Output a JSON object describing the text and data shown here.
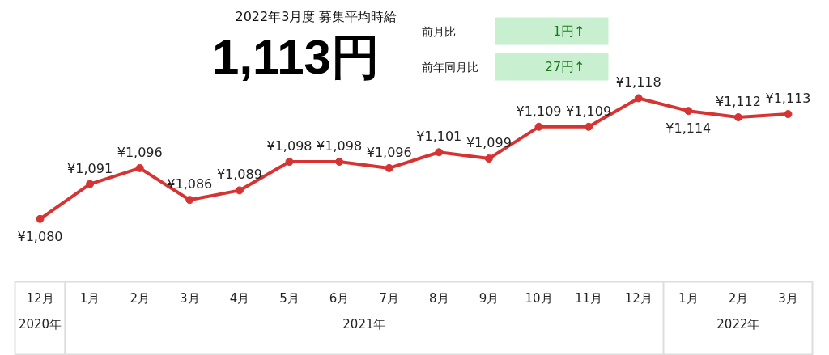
{
  "chart_data": {
    "type": "line",
    "title": "2022年3月度 募集平均時給",
    "categories": [
      "12月",
      "1月",
      "2月",
      "3月",
      "4月",
      "5月",
      "6月",
      "7月",
      "8月",
      "9月",
      "10月",
      "11月",
      "12月",
      "1月",
      "2月",
      "3月"
    ],
    "values": [
      1080,
      1091,
      1096,
      1086,
      1089,
      1098,
      1098,
      1096,
      1101,
      1099,
      1109,
      1109,
      1118,
      1114,
      1112,
      1113
    ],
    "value_labels": [
      "¥1,080",
      "¥1,091",
      "¥1,096",
      "¥1,086",
      "¥1,089",
      "¥1,098",
      "¥1,098",
      "¥1,096",
      "¥1,101",
      "¥1,099",
      "¥1,109",
      "¥1,109",
      "¥1,118",
      "¥1,114",
      "¥1,112",
      "¥1,113"
    ],
    "color": "#d63333",
    "marker": "circle",
    "annotations": [
      "1,113円",
      "前月比",
      "1円↑",
      "前年同月比",
      "27円↑",
      "2020年",
      "2021年",
      "2022年"
    ]
  }
}
